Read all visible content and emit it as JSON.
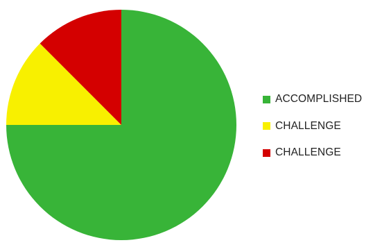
{
  "chart_data": {
    "type": "pie",
    "title": "",
    "legend_placement": "right",
    "start_angle_deg": 0,
    "direction": "clockwise",
    "slices": [
      {
        "label": "ACCOMPLISHED",
        "value": 75,
        "color": "#38b438"
      },
      {
        "label": "CHALLENGE",
        "value": 12.5,
        "color": "#f8f000"
      },
      {
        "label": "CHALLENGE",
        "value": 12.5,
        "color": "#d40000"
      }
    ]
  }
}
